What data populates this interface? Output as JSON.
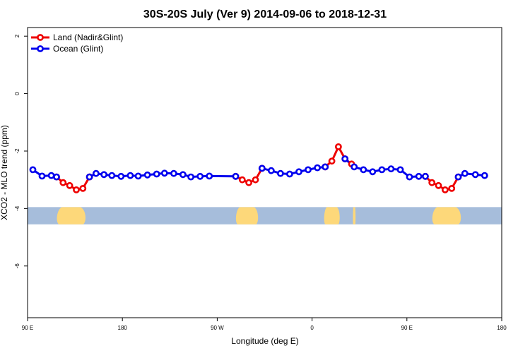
{
  "chart_data": {
    "type": "line",
    "title": "30S-20S July (Ver 9)   2014-09-06 to 2018-12-31",
    "xlabel": "Longitude (deg E)",
    "ylabel": "XCO2 - MLO trend (ppm)",
    "xlim": [
      90,
      450
    ],
    "ylim": [
      -7.8,
      2.3
    ],
    "x_ticks": [
      {
        "value": 90,
        "label": "90 E"
      },
      {
        "value": 162,
        "label": "180"
      },
      {
        "value": 234,
        "label": "90 W"
      },
      {
        "value": 306,
        "label": "0"
      },
      {
        "value": 378,
        "label": "90 E"
      },
      {
        "value": 450,
        "label": "180"
      }
    ],
    "y_ticks": [
      {
        "value": 2,
        "label": "2"
      },
      {
        "value": 0,
        "label": "0"
      },
      {
        "value": -2,
        "label": "-2"
      },
      {
        "value": -4,
        "label": "-4"
      },
      {
        "value": -6,
        "label": "-6"
      }
    ],
    "legend_position": "top-left",
    "land_strip": {
      "ymin": -4.55,
      "ymax": -3.95,
      "ocean_color": "#a6bddb",
      "land_color": "#fdd87a"
    },
    "series": [
      {
        "name": "Land (Nadir&Glint)",
        "color": "#ee0000",
        "segments": [
          [
            [
              112,
              -2.9
            ],
            [
              117,
              -3.1
            ],
            [
              122,
              -3.2
            ],
            [
              127,
              -3.35
            ],
            [
              132,
              -3.3
            ],
            [
              137,
              -2.9
            ]
          ],
          [
            [
              248,
              -2.88
            ],
            [
              253,
              -3.0
            ],
            [
              258,
              -3.1
            ],
            [
              263,
              -3.0
            ],
            [
              268,
              -2.6
            ]
          ],
          [
            [
              316,
              -2.55
            ],
            [
              321,
              -2.35
            ],
            [
              326,
              -1.85
            ],
            [
              331,
              -2.27
            ],
            [
              336,
              -2.45
            ]
          ],
          [
            [
              392,
              -2.88
            ],
            [
              397,
              -3.1
            ],
            [
              402,
              -3.2
            ],
            [
              407,
              -3.35
            ],
            [
              412,
              -3.3
            ],
            [
              417,
              -2.9
            ]
          ]
        ]
      },
      {
        "name": "Ocean (Glint)",
        "color": "#0000ee",
        "segments": [
          [
            [
              94,
              -2.65
            ],
            [
              101,
              -2.87
            ],
            [
              108,
              -2.85
            ],
            [
              112,
              -2.9
            ]
          ],
          [
            [
              137,
              -2.9
            ],
            [
              142,
              -2.78
            ],
            [
              148,
              -2.82
            ],
            [
              154,
              -2.85
            ],
            [
              161,
              -2.88
            ],
            [
              168,
              -2.85
            ],
            [
              174,
              -2.87
            ],
            [
              181,
              -2.83
            ],
            [
              188,
              -2.8
            ],
            [
              194,
              -2.77
            ],
            [
              201,
              -2.78
            ],
            [
              208,
              -2.82
            ],
            [
              214,
              -2.9
            ],
            [
              221,
              -2.88
            ],
            [
              228,
              -2.87
            ],
            [
              248,
              -2.88
            ]
          ],
          [
            [
              268,
              -2.6
            ],
            [
              275,
              -2.68
            ],
            [
              282,
              -2.78
            ],
            [
              289,
              -2.8
            ],
            [
              296,
              -2.72
            ],
            [
              303,
              -2.65
            ],
            [
              310,
              -2.58
            ],
            [
              316,
              -2.55
            ]
          ],
          [
            [
              331,
              -2.27
            ],
            [
              338,
              -2.55
            ],
            [
              345,
              -2.65
            ],
            [
              352,
              -2.72
            ],
            [
              359,
              -2.65
            ],
            [
              366,
              -2.62
            ],
            [
              373,
              -2.65
            ],
            [
              380,
              -2.9
            ],
            [
              387,
              -2.88
            ],
            [
              392,
              -2.88
            ]
          ],
          [
            [
              417,
              -2.9
            ],
            [
              422,
              -2.78
            ],
            [
              430,
              -2.82
            ],
            [
              437,
              -2.85
            ]
          ]
        ]
      }
    ]
  }
}
